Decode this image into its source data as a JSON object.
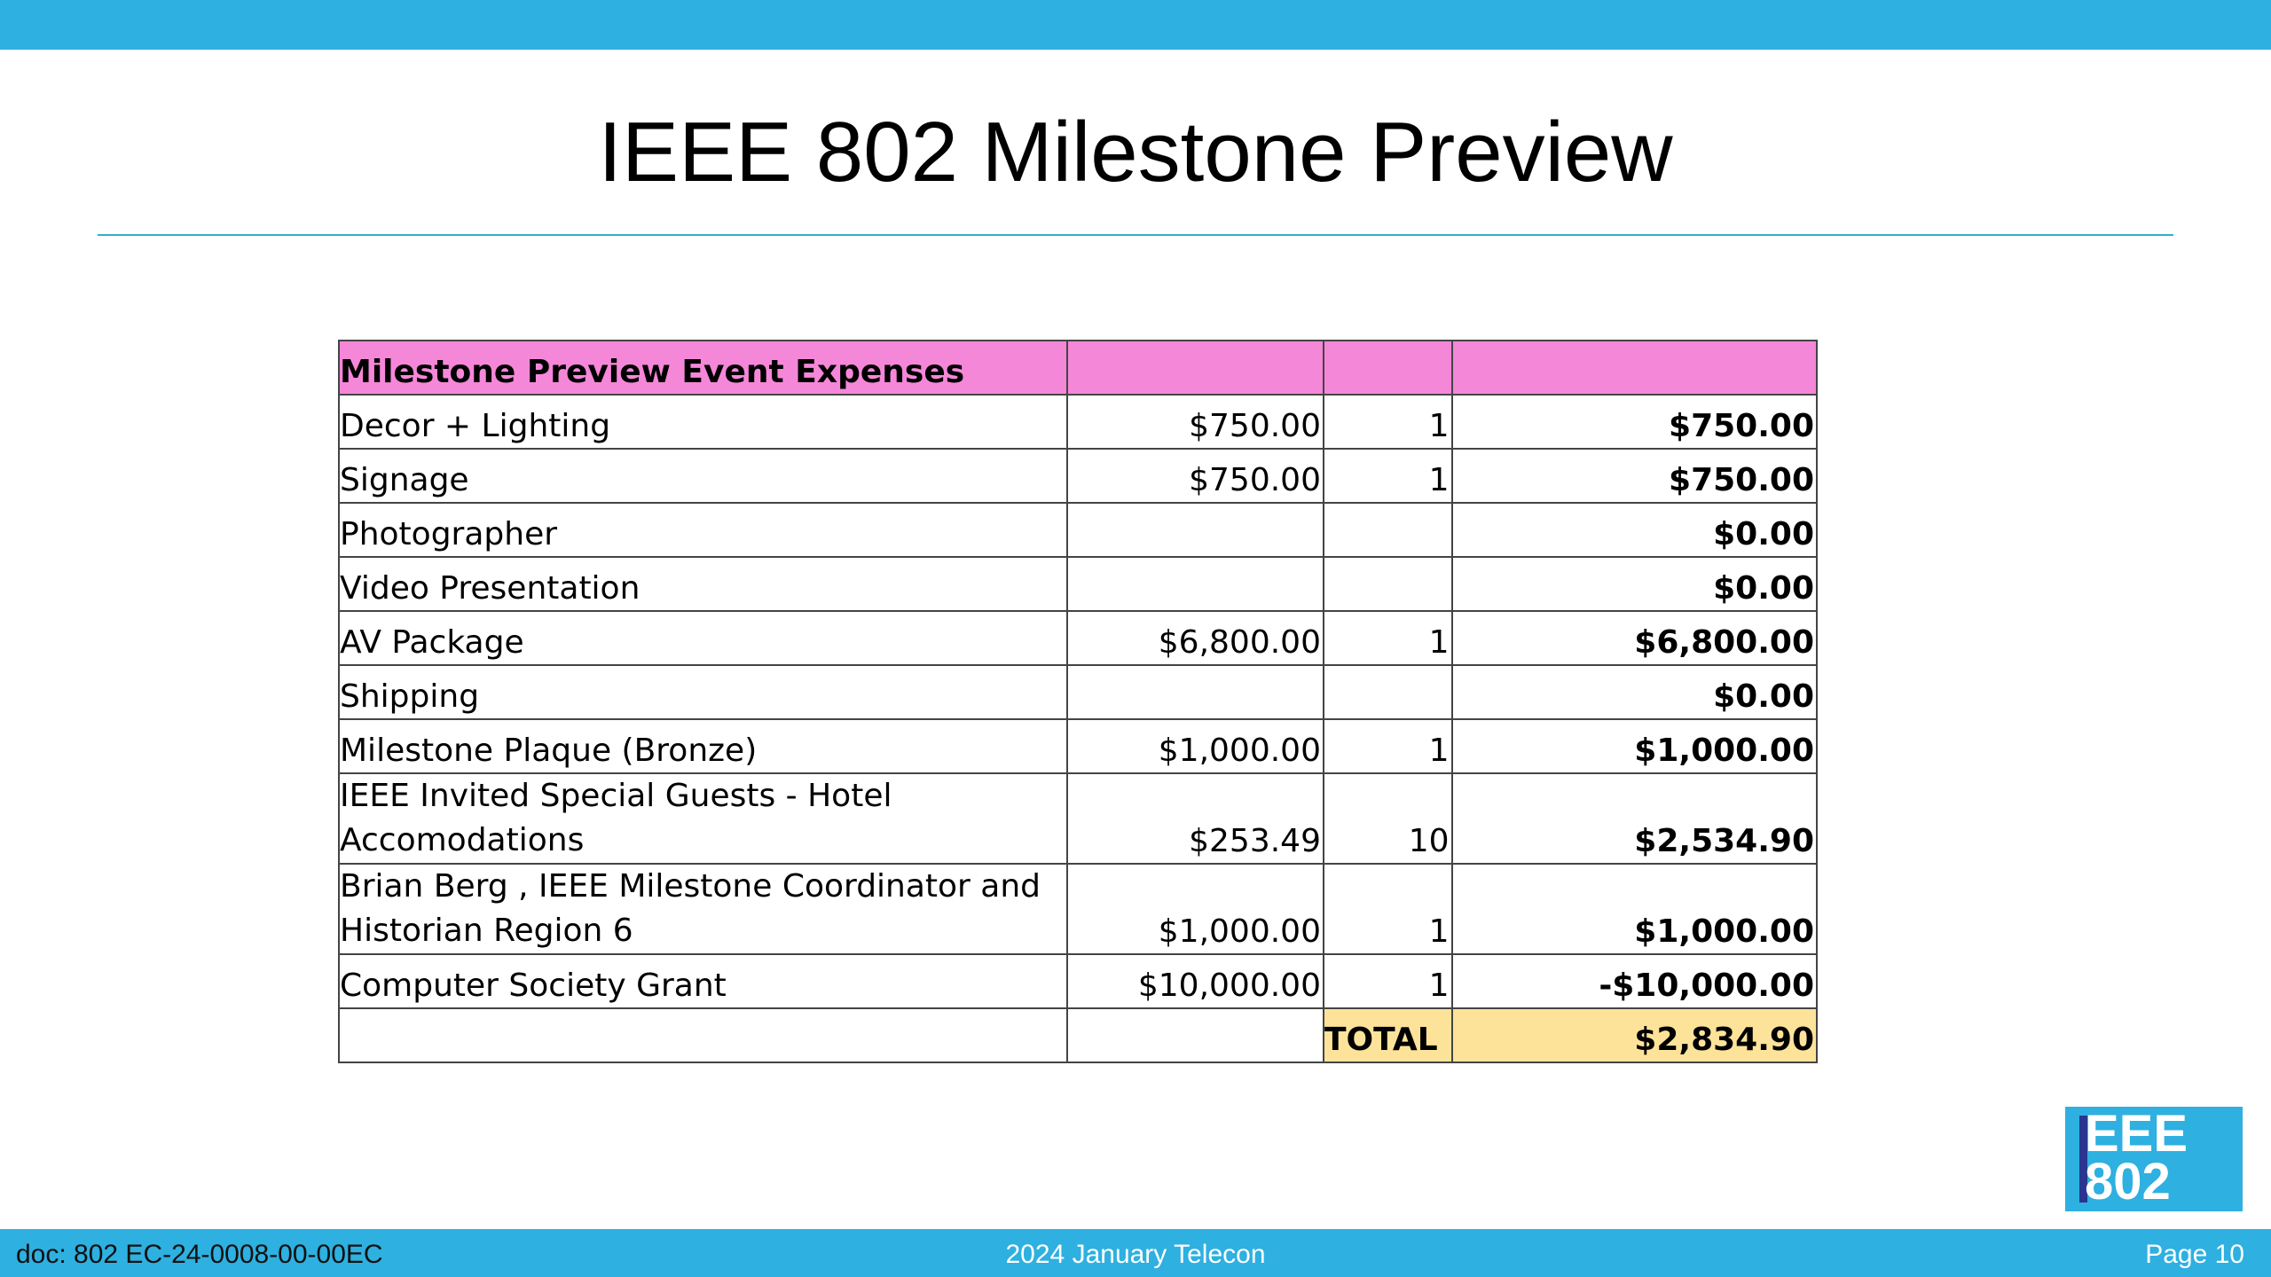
{
  "slide": {
    "title": "IEEE 802 Milestone Preview"
  },
  "table": {
    "header": "Milestone Preview Event Expenses",
    "rows": [
      {
        "item": "Decor + Lighting",
        "price": "$750.00",
        "qty": "1",
        "total": "$750.00"
      },
      {
        "item": "Signage",
        "price": "$750.00",
        "qty": "1",
        "total": "$750.00"
      },
      {
        "item": "Photographer",
        "price": "",
        "qty": "",
        "total": "$0.00"
      },
      {
        "item": "Video Presentation",
        "price": "",
        "qty": "",
        "total": "$0.00"
      },
      {
        "item": "AV Package",
        "price": "$6,800.00",
        "qty": "1",
        "total": "$6,800.00"
      },
      {
        "item": "Shipping",
        "price": "",
        "qty": "",
        "total": "$0.00"
      },
      {
        "item": "Milestone Plaque (Bronze)",
        "price": "$1,000.00",
        "qty": "1",
        "total": "$1,000.00"
      },
      {
        "item": "IEEE Invited Special Guests - Hotel Accomodations",
        "price": "$253.49",
        "qty": "10",
        "total": "$2,534.90"
      },
      {
        "item": "Brian Berg , IEEE Milestone Coordinator and Historian Region 6",
        "price": "$1,000.00",
        "qty": "1",
        "total": "$1,000.00"
      },
      {
        "item": "Computer Society Grant",
        "price": "$10,000.00",
        "qty": "1",
        "total": "-$10,000.00"
      }
    ],
    "total_label": "TOTAL",
    "total_value": "$2,834.90",
    "colors": {
      "header_bg": "#f587d9",
      "total_bg": "#fde39a"
    }
  },
  "logo": {
    "line1": "EEE",
    "line2": "802"
  },
  "footer": {
    "doc_id": "doc: 802 EC-24-0008-00-00EC",
    "meeting": "2024 January Telecon",
    "page": "Page 10"
  },
  "colors": {
    "bar": "#2eb0e0",
    "rule": "#2eb0c8"
  }
}
